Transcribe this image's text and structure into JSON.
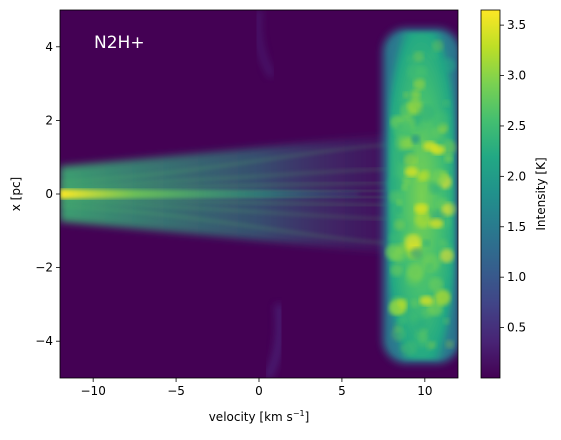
{
  "chart_data": {
    "type": "heatmap",
    "annotation": "N2H+",
    "xlabel": "velocity [km s",
    "xlabel_sup": "−1",
    "xlabel_end": "]",
    "ylabel": "x [pc]",
    "xlim": [
      -12,
      12
    ],
    "ylim": [
      -5,
      5
    ],
    "x_ticks": [
      -10,
      -5,
      0,
      5,
      10
    ],
    "x_tick_labels": [
      "−10",
      "−5",
      "0",
      "5",
      "10"
    ],
    "y_ticks": [
      -4,
      -2,
      0,
      2,
      4
    ],
    "y_tick_labels": [
      "−4",
      "−2",
      "0",
      "2",
      "4"
    ],
    "colorbar": {
      "label": "Intensity [K]",
      "range": [
        0.0,
        3.65
      ],
      "ticks": [
        0.5,
        1.0,
        1.5,
        2.0,
        2.5,
        3.0,
        3.5
      ],
      "tick_labels": [
        "0.5",
        "1.0",
        "1.5",
        "2.0",
        "2.5",
        "3.0",
        "3.5"
      ],
      "colormap": "viridis"
    },
    "features": [
      {
        "name": "thin-stream",
        "x_range": [
          -12,
          8
        ],
        "y_center": 0.0,
        "half_width": [
          0.15,
          1.0
        ],
        "peak_intensity": 3.5
      },
      {
        "name": "bright-slab",
        "x_range": [
          7.8,
          11.8
        ],
        "y_range": [
          -4.5,
          4.4
        ],
        "peak_intensity": 3.6
      }
    ]
  }
}
